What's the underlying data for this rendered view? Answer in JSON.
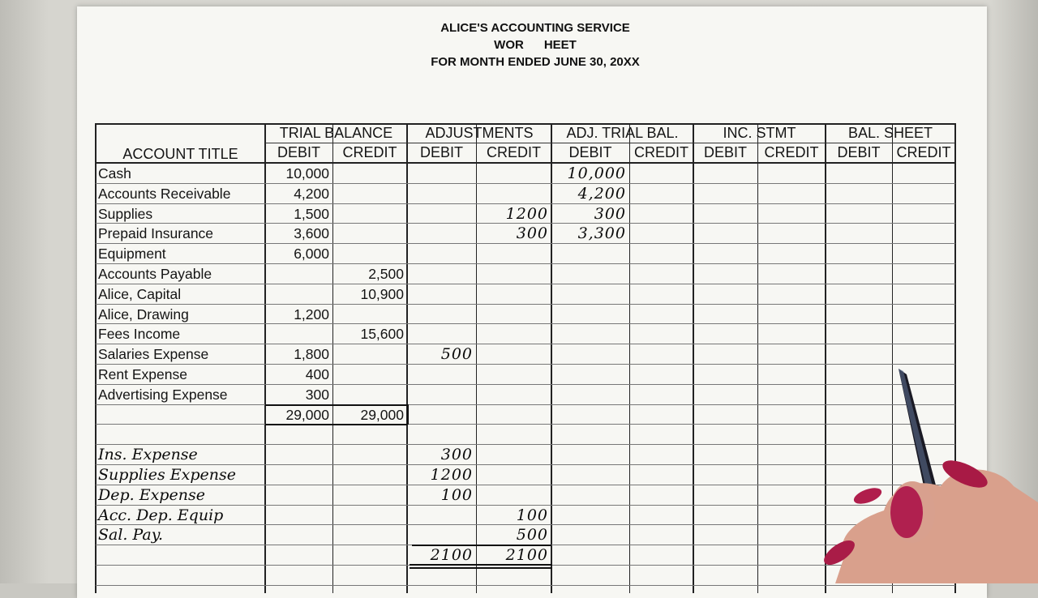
{
  "heading": {
    "line1": "ALICE'S ACCOUNTING SERVICE",
    "line2": "WOR      HEET",
    "line3": "FOR MONTH ENDED JUNE 30, 20XX"
  },
  "headers": {
    "account_title": "ACCOUNT TITLE",
    "groups": [
      "TRIAL BALANCE",
      "ADJUSTMENTS",
      "ADJ. TRIAL BAL.",
      "INC. STMT",
      "BAL. SHEET"
    ],
    "debit": "DEBIT",
    "credit": "CREDIT"
  },
  "rows": [
    {
      "title": "Cash",
      "tb_debit": "10,000",
      "atb_debit": "10,000"
    },
    {
      "title": "Accounts Receivable",
      "tb_debit": "4,200",
      "atb_debit": "4,200"
    },
    {
      "title": "Supplies",
      "tb_debit": "1,500",
      "adj_credit": "1200",
      "atb_debit": "300"
    },
    {
      "title": "Prepaid Insurance",
      "tb_debit": "3,600",
      "adj_credit": "300",
      "atb_debit": "3,300"
    },
    {
      "title": "Equipment",
      "tb_debit": "6,000"
    },
    {
      "title": "Accounts Payable",
      "tb_credit": "2,500"
    },
    {
      "title": "Alice, Capital",
      "tb_credit": "10,900"
    },
    {
      "title": "Alice, Drawing",
      "tb_debit": "1,200"
    },
    {
      "title": "Fees Income",
      "tb_credit": "15,600"
    },
    {
      "title": "Salaries Expense",
      "tb_debit": "1,800",
      "adj_debit": "500"
    },
    {
      "title": "Rent Expense",
      "tb_debit": "400"
    },
    {
      "title": "Advertising Expense",
      "tb_debit": "300"
    },
    {
      "title": "",
      "tb_debit": "29,000",
      "tb_credit": "29,000"
    },
    {
      "title": ""
    },
    {
      "title": "Ins. Expense",
      "adj_debit": "300",
      "handwritten": true
    },
    {
      "title": "Supplies Expense",
      "adj_debit": "1200",
      "handwritten": true
    },
    {
      "title": "Dep. Expense",
      "adj_debit": "100",
      "handwritten": true
    },
    {
      "title": "Acc. Dep. Equip",
      "adj_credit": "100",
      "handwritten": true
    },
    {
      "title": "Sal. Pay.",
      "adj_credit": "500",
      "handwritten": true
    },
    {
      "title": "",
      "adj_debit": "2100",
      "adj_credit": "2100"
    },
    {
      "title": ""
    }
  ]
}
